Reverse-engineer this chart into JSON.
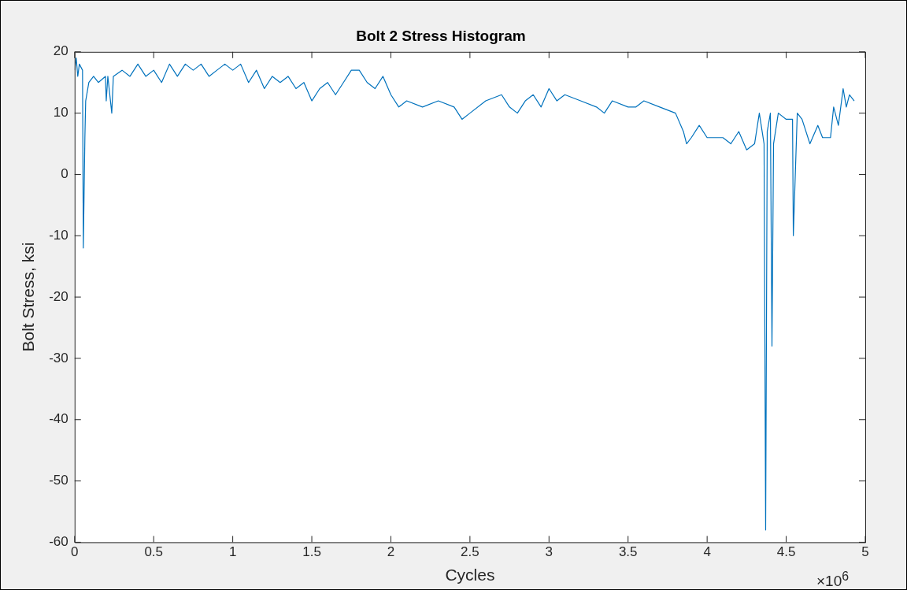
{
  "chart_data": {
    "type": "line",
    "title": "Bolt 2 Stress Histogram",
    "xlabel": "Cycles",
    "ylabel": "Bolt Stress, ksi",
    "annotations": [
      "×10$^{6}$"
    ],
    "xlim": [
      0,
      5
    ],
    "xticks": [
      0,
      0.5,
      1,
      1.5,
      2,
      2.5,
      3,
      3.5,
      4,
      4.5,
      5
    ],
    "ylim": [
      -60,
      20
    ],
    "yticks": [
      -60,
      -50,
      -40,
      -30,
      -20,
      -10,
      0,
      10,
      20
    ],
    "grid": false,
    "legend": false,
    "marker": "none",
    "line_style": "solid",
    "series": [
      {
        "color": "#0072bd",
        "x": [
          0,
          0.01,
          0.02,
          0.03,
          0.05,
          0.055,
          0.065,
          0.07,
          0.09,
          0.12,
          0.15,
          0.195,
          0.2,
          0.21,
          0.235,
          0.245,
          0.3,
          0.35,
          0.4,
          0.45,
          0.5,
          0.55,
          0.6,
          0.65,
          0.7,
          0.75,
          0.8,
          0.85,
          0.9,
          0.95,
          1.0,
          1.05,
          1.1,
          1.15,
          1.2,
          1.25,
          1.3,
          1.35,
          1.4,
          1.45,
          1.5,
          1.55,
          1.6,
          1.65,
          1.7,
          1.75,
          1.8,
          1.85,
          1.9,
          1.95,
          2.0,
          2.05,
          2.1,
          2.2,
          2.3,
          2.4,
          2.45,
          2.5,
          2.6,
          2.7,
          2.75,
          2.8,
          2.85,
          2.9,
          2.95,
          3.0,
          3.05,
          3.1,
          3.2,
          3.3,
          3.35,
          3.4,
          3.5,
          3.55,
          3.6,
          3.7,
          3.8,
          3.85,
          3.87,
          3.9,
          3.95,
          4.0,
          4.1,
          4.15,
          4.2,
          4.25,
          4.3,
          4.33,
          4.36,
          4.37,
          4.38,
          4.4,
          4.41,
          4.42,
          4.45,
          4.5,
          4.54,
          4.545,
          4.57,
          4.6,
          4.65,
          4.7,
          4.73,
          4.78,
          4.8,
          4.83,
          4.86,
          4.88,
          4.9,
          4.93
        ],
        "values": [
          17,
          19,
          16,
          18,
          17,
          -12,
          6,
          12,
          15,
          16,
          15,
          16,
          12,
          16,
          10,
          16,
          17,
          16,
          18,
          16,
          17,
          15,
          18,
          16,
          18,
          17,
          18,
          16,
          17,
          18,
          17,
          18,
          15,
          17,
          14,
          16,
          15,
          16,
          14,
          15,
          12,
          14,
          15,
          13,
          15,
          17,
          17,
          15,
          14,
          16,
          13,
          11,
          12,
          11,
          12,
          11,
          9,
          10,
          12,
          13,
          11,
          10,
          12,
          13,
          11,
          14,
          12,
          13,
          12,
          11,
          10,
          12,
          11,
          11,
          12,
          11,
          10,
          7,
          5,
          6,
          8,
          6,
          6,
          5,
          7,
          4,
          5,
          10,
          5,
          -58,
          7,
          10,
          -28,
          5,
          10,
          9,
          9,
          -10,
          10,
          9,
          5,
          8,
          6,
          6,
          11,
          8,
          14,
          11,
          13,
          12
        ]
      }
    ]
  }
}
